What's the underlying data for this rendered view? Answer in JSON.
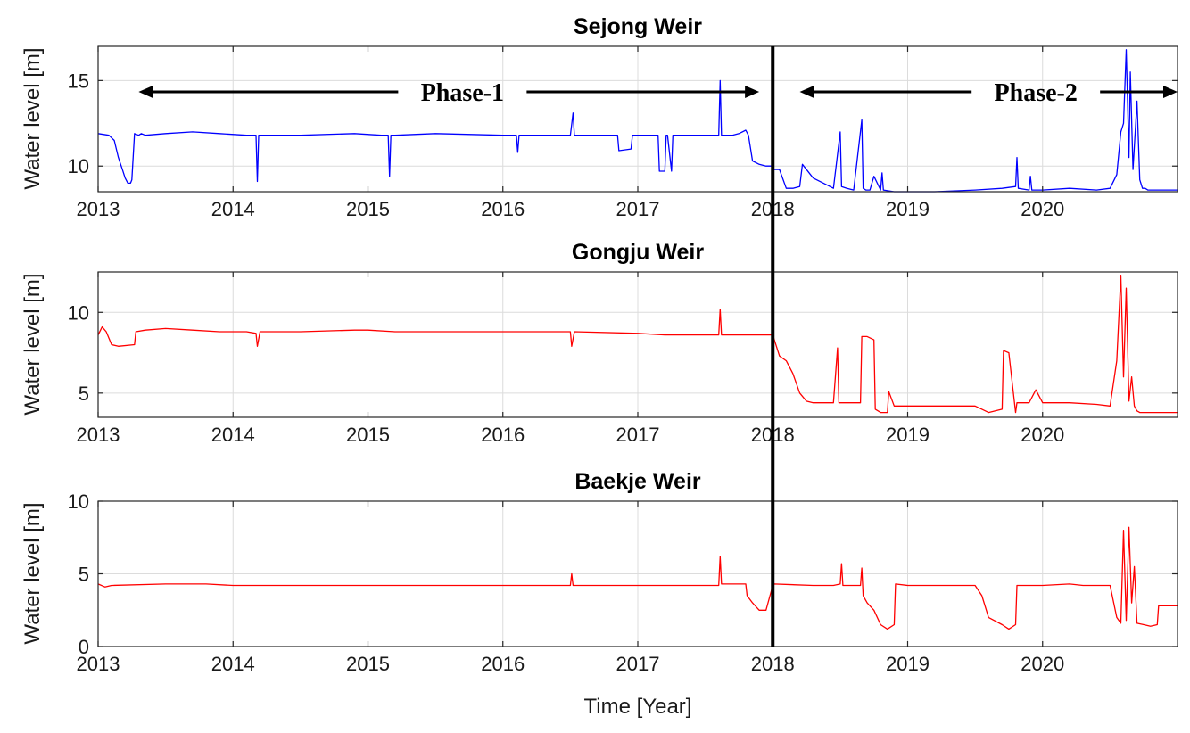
{
  "chart_data": [
    {
      "type": "line",
      "title": "Sejong Weir",
      "xlabel": "",
      "ylabel": "Water level [m]",
      "xlim": [
        2013,
        2021
      ],
      "ylim": [
        8.5,
        17
      ],
      "xticks": [
        2013,
        2014,
        2015,
        2016,
        2017,
        2018,
        2019,
        2020
      ],
      "yticks": [
        10,
        15
      ],
      "tick_labels_x": [
        "2013",
        "2014",
        "2015",
        "2016",
        "2017",
        "2018",
        "2019",
        "2020"
      ],
      "tick_labels_y": [
        "10",
        "15"
      ],
      "grid": true,
      "color": "#0000ff",
      "series": [
        {
          "name": "Sejong Weir",
          "x": [
            2013.0,
            2013.08,
            2013.12,
            2013.15,
            2013.18,
            2013.2,
            2013.22,
            2013.24,
            2013.25,
            2013.27,
            2013.3,
            2013.32,
            2013.35,
            2013.5,
            2013.7,
            2013.9,
            2014.1,
            2014.17,
            2014.18,
            2014.19,
            2014.2,
            2014.5,
            2014.9,
            2015.1,
            2015.15,
            2015.16,
            2015.17,
            2015.2,
            2015.5,
            2016.0,
            2016.1,
            2016.11,
            2016.12,
            2016.5,
            2016.52,
            2016.53,
            2016.8,
            2016.85,
            2016.86,
            2016.95,
            2016.96,
            2017.15,
            2017.16,
            2017.2,
            2017.21,
            2017.22,
            2017.25,
            2017.26,
            2017.3,
            2017.6,
            2017.61,
            2017.62,
            2017.63,
            2017.7,
            2017.75,
            2017.8,
            2017.82,
            2017.85,
            2017.9,
            2017.95,
            2018.0,
            2018.01,
            2018.05,
            2018.1,
            2018.15,
            2018.2,
            2018.22,
            2018.3,
            2018.4,
            2018.45,
            2018.5,
            2018.51,
            2018.55,
            2018.6,
            2018.66,
            2018.67,
            2018.69,
            2018.72,
            2018.75,
            2018.8,
            2018.81,
            2018.82,
            2018.9,
            2019.0,
            2019.2,
            2019.5,
            2019.7,
            2019.8,
            2019.81,
            2019.82,
            2019.9,
            2019.91,
            2019.92,
            2020.0,
            2020.2,
            2020.4,
            2020.5,
            2020.55,
            2020.58,
            2020.6,
            2020.62,
            2020.64,
            2020.65,
            2020.67,
            2020.7,
            2020.72,
            2020.74,
            2020.76,
            2020.78,
            2020.8,
            2021.0
          ],
          "y": [
            11.9,
            11.8,
            11.5,
            10.5,
            9.8,
            9.3,
            9.0,
            9.0,
            9.2,
            11.9,
            11.8,
            11.9,
            11.8,
            11.9,
            12.0,
            11.9,
            11.8,
            11.8,
            9.1,
            11.8,
            11.8,
            11.8,
            11.9,
            11.8,
            11.8,
            9.4,
            11.8,
            11.8,
            11.9,
            11.8,
            11.8,
            10.8,
            11.8,
            11.8,
            13.1,
            11.8,
            11.8,
            11.8,
            10.9,
            11.0,
            11.8,
            11.8,
            9.7,
            9.7,
            11.8,
            11.8,
            9.7,
            11.8,
            11.8,
            11.8,
            15.0,
            11.8,
            11.8,
            11.8,
            11.9,
            12.1,
            11.8,
            10.3,
            10.1,
            10.0,
            10.0,
            9.8,
            9.8,
            8.7,
            8.7,
            8.8,
            10.1,
            9.3,
            8.9,
            8.7,
            12.0,
            8.8,
            8.7,
            8.6,
            12.7,
            8.7,
            8.6,
            8.6,
            9.4,
            8.6,
            9.6,
            8.6,
            8.5,
            8.5,
            8.5,
            8.6,
            8.7,
            8.8,
            10.5,
            8.7,
            8.6,
            9.4,
            8.6,
            8.6,
            8.7,
            8.6,
            8.7,
            9.5,
            12.0,
            12.5,
            16.8,
            10.5,
            15.5,
            9.8,
            13.8,
            9.2,
            8.7,
            8.7,
            8.6,
            8.6,
            8.6
          ]
        }
      ]
    },
    {
      "type": "line",
      "title": "Gongju Weir",
      "xlabel": "",
      "ylabel": "Water level [m]",
      "xlim": [
        2013,
        2021
      ],
      "ylim": [
        3.5,
        12.5
      ],
      "xticks": [
        2013,
        2014,
        2015,
        2016,
        2017,
        2018,
        2019,
        2020
      ],
      "yticks": [
        5,
        10
      ],
      "tick_labels_x": [
        "2013",
        "2014",
        "2015",
        "2016",
        "2017",
        "2018",
        "2019",
        "2020"
      ],
      "tick_labels_y": [
        "5",
        "10"
      ],
      "grid": true,
      "color": "#ff0000",
      "series": [
        {
          "name": "Gongju Weir",
          "x": [
            2013.0,
            2013.03,
            2013.06,
            2013.1,
            2013.15,
            2013.27,
            2013.28,
            2013.35,
            2013.5,
            2013.7,
            2013.9,
            2014.1,
            2014.17,
            2014.18,
            2014.2,
            2014.5,
            2014.9,
            2015.0,
            2015.2,
            2015.5,
            2016.0,
            2016.5,
            2016.51,
            2016.53,
            2017.0,
            2017.2,
            2017.35,
            2017.5,
            2017.6,
            2017.61,
            2017.62,
            2017.7,
            2018.0,
            2018.05,
            2018.1,
            2018.15,
            2018.2,
            2018.25,
            2018.3,
            2018.45,
            2018.48,
            2018.49,
            2018.5,
            2018.65,
            2018.66,
            2018.7,
            2018.75,
            2018.76,
            2018.8,
            2018.85,
            2018.86,
            2018.9,
            2019.0,
            2019.2,
            2019.5,
            2019.55,
            2019.6,
            2019.7,
            2019.71,
            2019.72,
            2019.75,
            2019.8,
            2019.81,
            2019.82,
            2019.9,
            2019.95,
            2020.0,
            2020.2,
            2020.4,
            2020.5,
            2020.55,
            2020.58,
            2020.6,
            2020.62,
            2020.64,
            2020.66,
            2020.68,
            2020.7,
            2020.72,
            2020.75,
            2021.0
          ],
          "y": [
            8.6,
            9.1,
            8.8,
            8.0,
            7.9,
            8.0,
            8.8,
            8.9,
            9.0,
            8.9,
            8.8,
            8.8,
            8.7,
            7.9,
            8.8,
            8.8,
            8.9,
            8.9,
            8.8,
            8.8,
            8.8,
            8.8,
            7.9,
            8.8,
            8.7,
            8.6,
            8.6,
            8.6,
            8.6,
            10.2,
            8.6,
            8.6,
            8.6,
            7.3,
            7.0,
            6.2,
            5.0,
            4.5,
            4.4,
            4.4,
            7.8,
            4.4,
            4.4,
            4.4,
            8.5,
            8.5,
            8.3,
            4.0,
            3.8,
            3.8,
            5.1,
            4.2,
            4.2,
            4.2,
            4.2,
            4.0,
            3.8,
            4.0,
            7.6,
            7.6,
            7.5,
            3.8,
            4.4,
            4.4,
            4.4,
            5.2,
            4.4,
            4.4,
            4.3,
            4.2,
            7.0,
            12.3,
            6.0,
            11.5,
            4.5,
            6.0,
            4.2,
            3.9,
            3.8,
            3.8,
            3.8
          ]
        }
      ]
    },
    {
      "type": "line",
      "title": "Baekje Weir",
      "xlabel": "Time [Year]",
      "ylabel": "Water level [m]",
      "xlim": [
        2013,
        2021
      ],
      "ylim": [
        0,
        10
      ],
      "xticks": [
        2013,
        2014,
        2015,
        2016,
        2017,
        2018,
        2019,
        2020
      ],
      "yticks": [
        0,
        5,
        10
      ],
      "tick_labels_x": [
        "2013",
        "2014",
        "2015",
        "2016",
        "2017",
        "2018",
        "2019",
        "2020"
      ],
      "tick_labels_y": [
        "0",
        "5",
        "10"
      ],
      "grid": true,
      "color": "#ff0000",
      "series": [
        {
          "name": "Baekje Weir",
          "x": [
            2013.0,
            2013.05,
            2013.1,
            2013.5,
            2013.8,
            2014.0,
            2014.5,
            2015.0,
            2015.5,
            2016.0,
            2016.5,
            2016.51,
            2016.52,
            2017.0,
            2017.5,
            2017.6,
            2017.61,
            2017.62,
            2017.8,
            2017.81,
            2017.85,
            2017.9,
            2017.95,
            2018.0,
            2018.01,
            2018.3,
            2018.45,
            2018.5,
            2018.51,
            2018.52,
            2018.6,
            2018.65,
            2018.66,
            2018.67,
            2018.7,
            2018.75,
            2018.8,
            2018.85,
            2018.9,
            2018.91,
            2019.0,
            2019.5,
            2019.55,
            2019.6,
            2019.7,
            2019.75,
            2019.8,
            2019.81,
            2019.82,
            2020.0,
            2020.2,
            2020.3,
            2020.4,
            2020.5,
            2020.55,
            2020.58,
            2020.6,
            2020.62,
            2020.64,
            2020.66,
            2020.68,
            2020.7,
            2020.75,
            2020.8,
            2020.85,
            2020.86,
            2021.0
          ],
          "y": [
            4.3,
            4.1,
            4.2,
            4.3,
            4.3,
            4.2,
            4.2,
            4.2,
            4.2,
            4.2,
            4.2,
            5.0,
            4.2,
            4.2,
            4.2,
            4.2,
            6.2,
            4.3,
            4.3,
            3.5,
            3.0,
            2.5,
            2.5,
            4.2,
            4.3,
            4.2,
            4.2,
            4.3,
            5.7,
            4.2,
            4.2,
            4.2,
            5.4,
            3.5,
            3.0,
            2.5,
            1.5,
            1.2,
            1.5,
            4.3,
            4.2,
            4.2,
            3.5,
            2.0,
            1.5,
            1.2,
            1.5,
            4.2,
            4.2,
            4.2,
            4.3,
            4.2,
            4.2,
            4.2,
            2.0,
            1.6,
            8.0,
            1.8,
            8.2,
            3.0,
            5.5,
            1.6,
            1.5,
            1.4,
            1.5,
            2.8,
            2.8
          ]
        }
      ]
    }
  ],
  "annotations": {
    "divider_year": 2018,
    "phases": [
      {
        "label": "Phase-1",
        "from": 2013.3,
        "to": 2017.9,
        "label_at": 2015.7
      },
      {
        "label": "Phase-2",
        "from": 2018.2,
        "to": 2021.0,
        "label_at": 2019.95
      }
    ]
  }
}
